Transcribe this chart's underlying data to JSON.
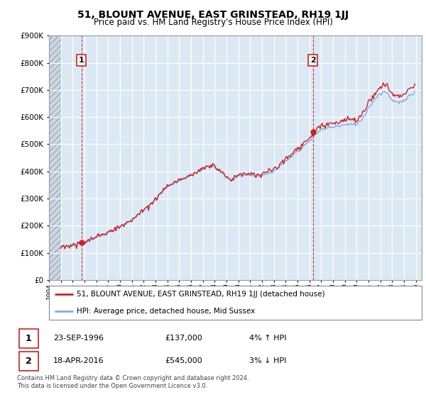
{
  "title": "51, BLOUNT AVENUE, EAST GRINSTEAD, RH19 1JJ",
  "subtitle": "Price paid vs. HM Land Registry's House Price Index (HPI)",
  "legend_line1": "51, BLOUNT AVENUE, EAST GRINSTEAD, RH19 1JJ (detached house)",
  "legend_line2": "HPI: Average price, detached house, Mid Sussex",
  "transaction1_date": "23-SEP-1996",
  "transaction1_price": "£137,000",
  "transaction1_hpi": "4% ↑ HPI",
  "transaction2_date": "18-APR-2016",
  "transaction2_price": "£545,000",
  "transaction2_hpi": "3% ↓ HPI",
  "footnote": "Contains HM Land Registry data © Crown copyright and database right 2024.\nThis data is licensed under the Open Government Licence v3.0.",
  "ylim": [
    0,
    900000
  ],
  "plot_bg_color": "#dce9f5",
  "grid_color": "#ffffff",
  "line_color_hpi": "#88aadd",
  "line_color_price": "#cc2222",
  "vline_color": "#cc2222",
  "point1_x": 1996.75,
  "point1_y": 137000,
  "point2_x": 2016.29,
  "point2_y": 545000,
  "xmin": 1994.0,
  "xmax": 2025.5,
  "hatch_end_x": 1995.0
}
